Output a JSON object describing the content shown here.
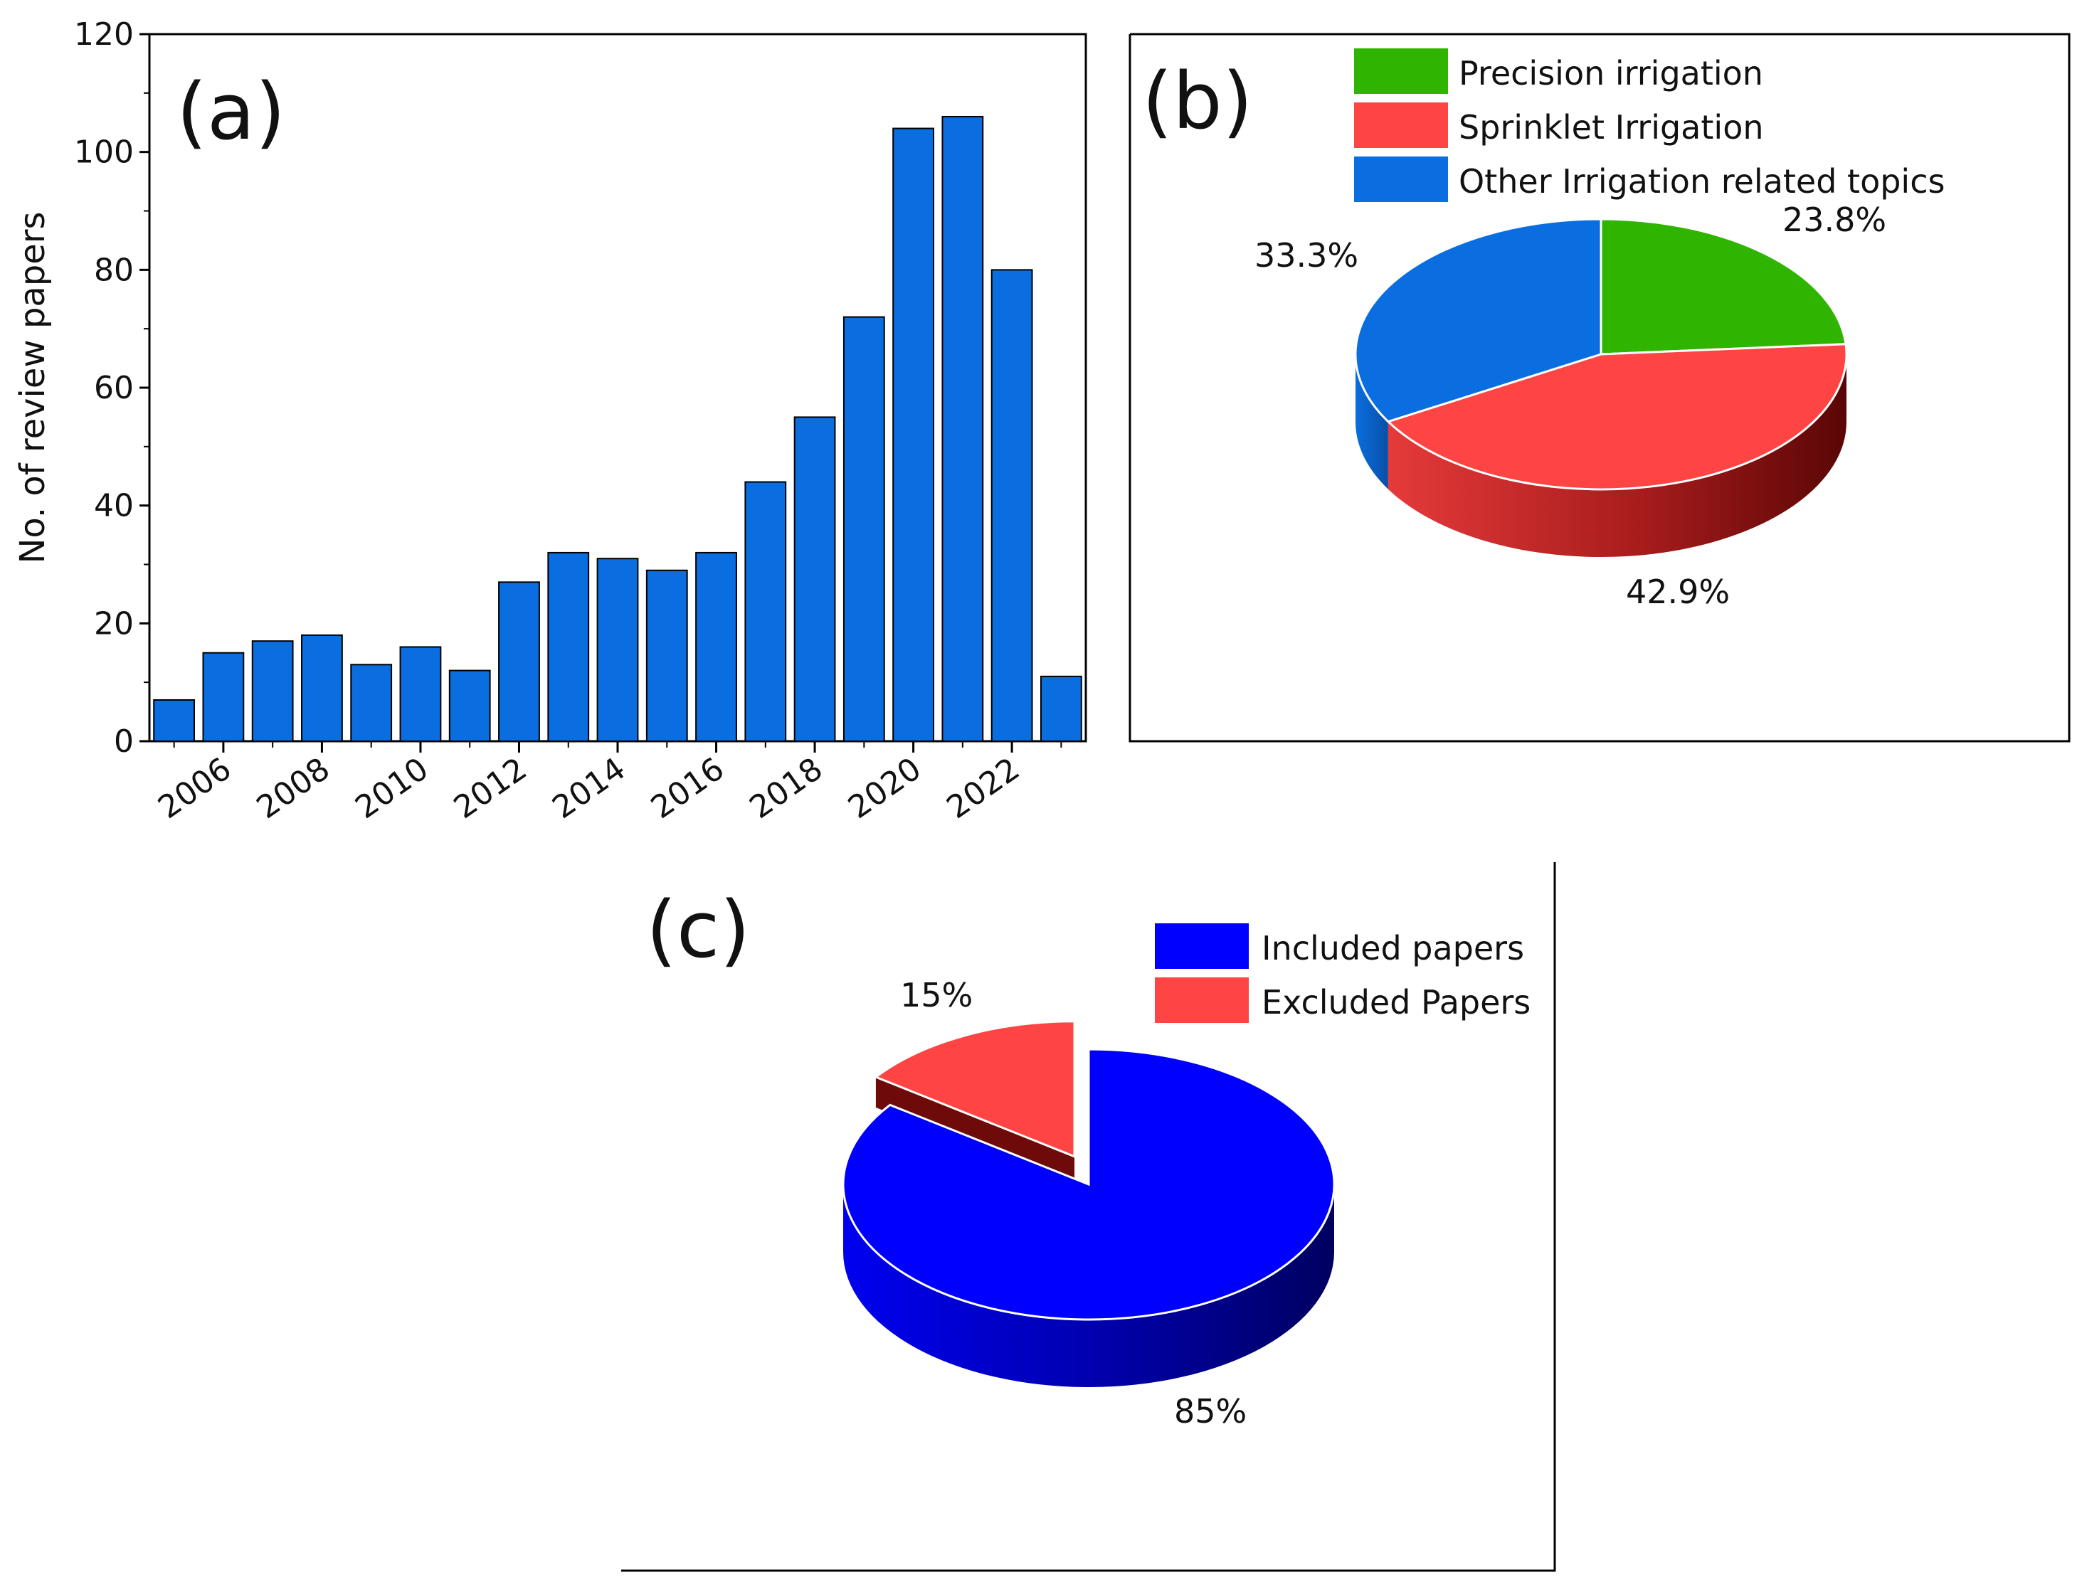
{
  "chart_data": [
    {
      "id": "a",
      "type": "bar",
      "panel_label": "(a)",
      "title": "",
      "xlabel": "",
      "ylabel": "No. of review papers",
      "x": [
        2005,
        2006,
        2007,
        2008,
        2009,
        2010,
        2011,
        2012,
        2013,
        2014,
        2015,
        2016,
        2017,
        2018,
        2019,
        2020,
        2021,
        2022,
        2023
      ],
      "values": [
        7,
        15,
        17,
        18,
        13,
        16,
        12,
        27,
        32,
        31,
        29,
        32,
        44,
        55,
        72,
        104,
        106,
        80,
        11
      ],
      "xtick_labels": [
        "2006",
        "2008",
        "2010",
        "2012",
        "2014",
        "2016",
        "2018",
        "2020",
        "2022"
      ],
      "ytick_labels": [
        "0",
        "20",
        "40",
        "60",
        "80",
        "100",
        "120"
      ],
      "ylim": [
        0,
        120
      ],
      "bar_color": "#0a6ee0"
    },
    {
      "id": "b",
      "type": "pie",
      "panel_label": "(b)",
      "labels": [
        "Precision irrigation",
        "Sprinklet Irrigation",
        "Other Irrigation related topics"
      ],
      "values": [
        23.8,
        42.9,
        33.3
      ],
      "pct_labels": [
        "23.8%",
        "42.9%",
        "33.3%"
      ],
      "colors": [
        "#2fb500",
        "#ff4444",
        "#0a6ee0"
      ],
      "legend_position": "top-right"
    },
    {
      "id": "c",
      "type": "pie",
      "panel_label": "(c)",
      "labels": [
        "Included papers",
        "Excluded Papers"
      ],
      "values": [
        85,
        15
      ],
      "pct_labels": [
        "85%",
        "15%"
      ],
      "colors": [
        "#0000ff",
        "#ff4444"
      ],
      "legend_position": "top-right"
    }
  ]
}
